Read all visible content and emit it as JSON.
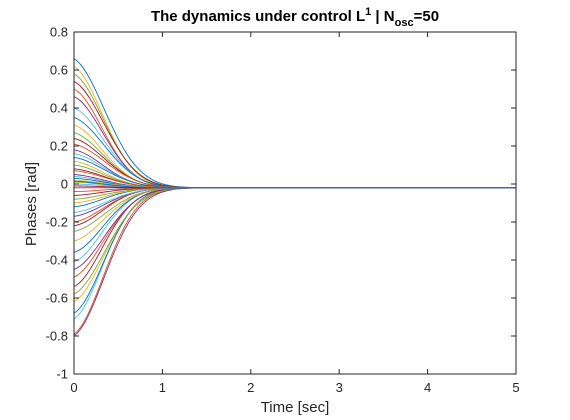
{
  "chart_data": {
    "type": "line",
    "title": {
      "part1": "The dynamics under control L",
      "sup": "1",
      "part2": " | N",
      "sub": "osc",
      "part3": "=50"
    },
    "xlabel": "Time [sec]",
    "ylabel": "Phases [rad]",
    "xlim": [
      0,
      5
    ],
    "ylim": [
      -1,
      0.8
    ],
    "xticks": [
      0,
      1,
      2,
      3,
      4,
      5
    ],
    "xtick_labels": [
      "0",
      "1",
      "2",
      "3",
      "4",
      "5"
    ],
    "yticks": [
      -1,
      -0.8,
      -0.6,
      -0.4,
      -0.2,
      0,
      0.2,
      0.4,
      0.6,
      0.8
    ],
    "ytick_labels": [
      "-1",
      "-0.8",
      "-0.6",
      "-0.4",
      "-0.2",
      "0",
      "0.2",
      "0.4",
      "0.6",
      "0.8"
    ],
    "grid": false,
    "n_series": 50,
    "palette": [
      "#0072BD",
      "#D95319",
      "#EDB120",
      "#7E2F8E",
      "#77AC30",
      "#4DBEEE",
      "#A2142F"
    ],
    "t_end": 5,
    "final_value": -0.02,
    "decay_rate": 3.8,
    "initial_values": [
      0.66,
      -0.79,
      0.62,
      -0.8,
      0.58,
      -0.71,
      0.54,
      -0.68,
      0.5,
      -0.62,
      0.46,
      -0.58,
      0.4,
      -0.54,
      0.35,
      -0.49,
      0.31,
      -0.45,
      0.27,
      -0.41,
      0.24,
      -0.36,
      0.21,
      -0.3,
      0.18,
      -0.25,
      0.16,
      -0.22,
      0.14,
      -0.2,
      0.12,
      -0.17,
      0.1,
      -0.15,
      0.08,
      -0.12,
      0.07,
      -0.1,
      0.05,
      -0.08,
      0.04,
      -0.06,
      0.03,
      -0.04,
      0.02,
      -0.02,
      0.01,
      0.0,
      -0.01,
      0.015
    ]
  }
}
